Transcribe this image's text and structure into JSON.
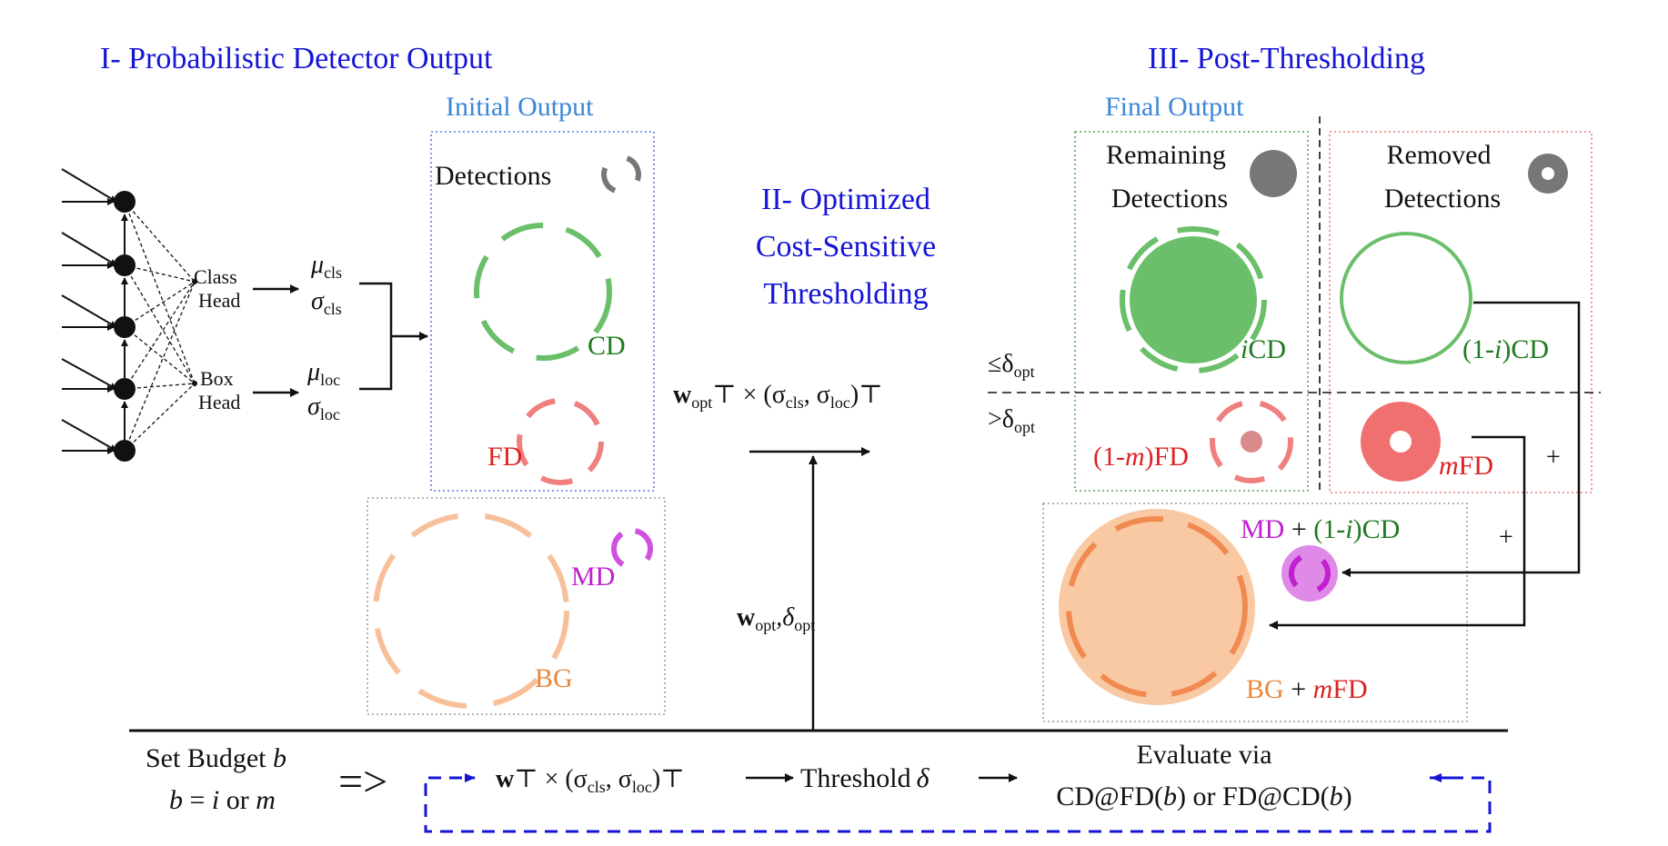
{
  "sections": {
    "detector_title": "I- Probabilistic Detector Output",
    "thresholding_title_line1": "II- Optimized",
    "thresholding_title_line2": "Cost-Sensitive",
    "thresholding_title_line3": "Thresholding",
    "post_title": "III- Post-Thresholding"
  },
  "network": {
    "class_head_line1": "Class",
    "class_head_line2": "Head",
    "box_head_line1": "Box",
    "box_head_line2": "Head",
    "mu_cls": "μ",
    "mu_cls_sub": "cls",
    "sigma_cls": "σ",
    "sigma_cls_sub": "cls",
    "mu_loc": "μ",
    "mu_loc_sub": "loc",
    "sigma_loc": "σ",
    "sigma_loc_sub": "loc"
  },
  "initial_output": {
    "title": "Initial Output",
    "detections_label": "Detections",
    "cd_label": "CD",
    "fd_label": "FD",
    "md_label": "MD",
    "bg_label": "BG"
  },
  "thresholding": {
    "formula_w": "w",
    "formula_w_sub": "opt",
    "formula_rest": "⊤ × (σ",
    "formula_cls": "cls",
    "formula_comma": ", σ",
    "formula_loc": "loc",
    "formula_close": ")⊤",
    "leq_label": "≤δ",
    "leq_sub": "opt",
    "gt_label": ">δ",
    "gt_sub": "opt",
    "params_w": "w",
    "params_w_sub": "opt",
    "params_delta": ",δ",
    "params_delta_sub": "opt"
  },
  "final_output": {
    "title": "Final Output",
    "remaining_line1": "Remaining",
    "remaining_line2": "Detections",
    "removed_line1": "Removed",
    "removed_line2": "Detections",
    "icd_i": "i",
    "icd_rest": "CD",
    "one_minus_i_cd_a": "(1-",
    "one_minus_i_cd_i": "i",
    "one_minus_i_cd_b": ")CD",
    "one_minus_m_fd_a": "(1-",
    "one_minus_m_fd_m": "m",
    "one_minus_m_fd_b": ")FD",
    "mfd_m": "m",
    "mfd_rest": "FD",
    "plus_1": "+",
    "plus_2": "+",
    "md_plus_md": "MD",
    "md_plus_sign": " + ",
    "md_plus_cd_a": "(1-",
    "md_plus_cd_i": "i",
    "md_plus_cd_b": ")CD",
    "bg_plus_bg": "BG",
    "bg_plus_sign": " + ",
    "bg_plus_m": "m",
    "bg_plus_fd": "FD"
  },
  "budget": {
    "set_budget_a": "Set Budget ",
    "set_budget_b": "b",
    "choice_b": "b",
    "choice_eq": " = ",
    "choice_i": "i",
    "choice_or": " or ",
    "choice_m": "m",
    "implies": "=>",
    "formula_w": "w",
    "formula_rest": "⊤ × (σ",
    "formula_cls": "cls",
    "formula_comma": ", σ",
    "formula_loc": "loc",
    "formula_close": ")⊤",
    "threshold_label": "Threshold",
    "threshold_delta": "δ",
    "evaluate_line1": "Evaluate via",
    "evaluate_line2_a": "CD@FD(",
    "evaluate_line2_b": "b",
    "evaluate_line2_c": ") or FD@CD(",
    "evaluate_line2_d": "b",
    "evaluate_line2_e": ")"
  },
  "colors": {
    "section_blue": "#1515d6",
    "label_blue": "#3a86d8",
    "cd_green": "#6bbf6b",
    "fd_red": "#f08080",
    "md_purple": "#d050e0",
    "bg_orange": "#f7b98a",
    "detection_gray": "#777777"
  }
}
